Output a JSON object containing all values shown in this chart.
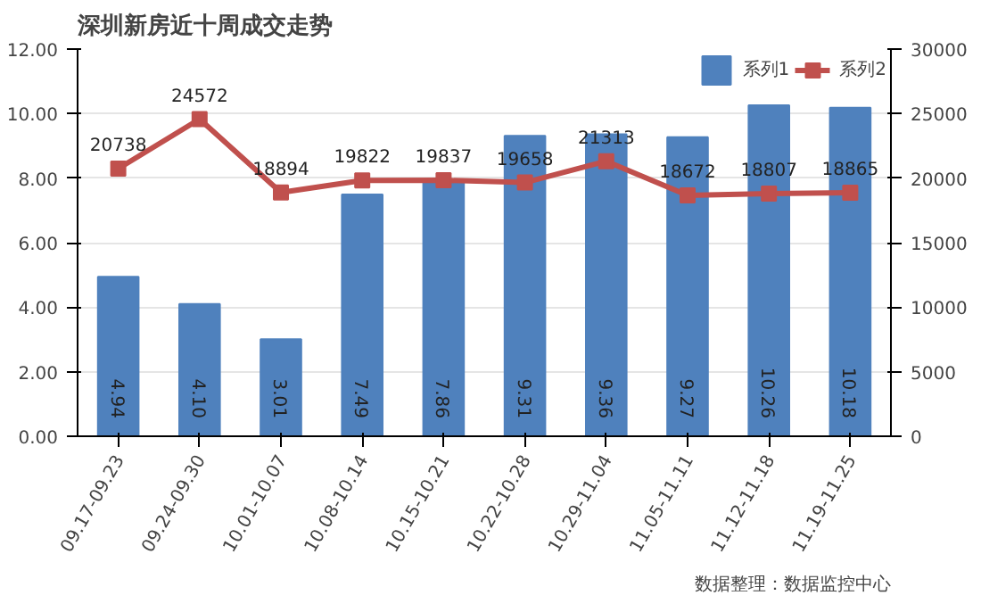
{
  "chart_data": {
    "type": "bar",
    "title": "深圳新房近十周成交走势",
    "categories": [
      "09.17-09.23",
      "09.24-09.30",
      "10.01-10.07",
      "10.08-10.14",
      "10.15-10.21",
      "10.22-10.28",
      "10.29-11.04",
      "11.05-11.11",
      "11.12-11.18",
      "11.19-11.25"
    ],
    "series": [
      {
        "name": "系列1",
        "color": "#4f81bd",
        "values": [
          4.94,
          4.1,
          3.01,
          7.49,
          7.86,
          9.31,
          9.36,
          9.27,
          10.26,
          10.18
        ],
        "value_labels": [
          "4.94",
          "4.10",
          "3.01",
          "7.49",
          "7.86",
          "9.31",
          "9.36",
          "9.27",
          "10.26",
          "10.18"
        ]
      },
      {
        "name": "系列2",
        "type": "line",
        "axis": "y2",
        "color": "#c0504d",
        "marker": "square",
        "values": [
          20738,
          24572,
          18894,
          19822,
          19837,
          19658,
          21313,
          18672,
          18807,
          18865
        ]
      }
    ],
    "data_labels": true,
    "ylim": [
      0,
      12
    ],
    "yticks": [
      {
        "value": 0,
        "label": "0.00"
      },
      {
        "value": 2,
        "label": "2.00"
      },
      {
        "value": 4,
        "label": "4.00"
      },
      {
        "value": 6,
        "label": "6.00"
      },
      {
        "value": 8,
        "label": "8.00"
      },
      {
        "value": 10,
        "label": "10.00"
      },
      {
        "value": 12,
        "label": "12.00"
      }
    ],
    "y2lim": [
      0,
      30000
    ],
    "y2ticks": [
      0,
      5000,
      10000,
      15000,
      20000,
      25000,
      30000
    ],
    "grid": "y",
    "legend": "top right",
    "annotations": [
      "数据整理：数据监控中心"
    ]
  }
}
